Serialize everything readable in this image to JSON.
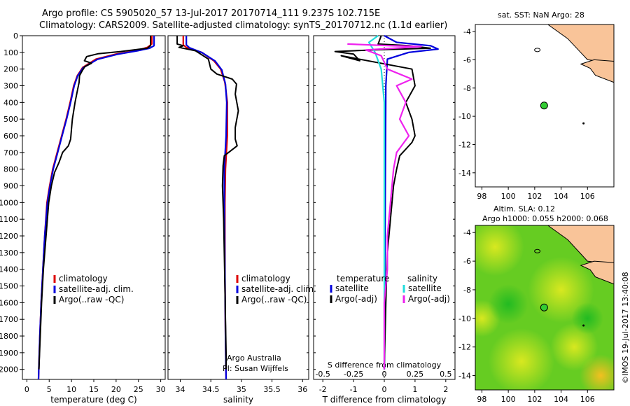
{
  "header": {
    "title1": "Argo profile: CS 5905020_57 13-Jul-2017 20170714_111 9.237S 102.715E",
    "title2": "Climatology: CARS2009. Satellite-adjusted climatology: synTS_20170712.nc (1.1d earlier)"
  },
  "depth_ticks": [
    "0",
    "100",
    "200",
    "300",
    "400",
    "500",
    "600",
    "700",
    "800",
    "900",
    "1000",
    "1100",
    "1200",
    "1300",
    "1400",
    "1500",
    "1600",
    "1700",
    "1800",
    "1900",
    "2000"
  ],
  "colors": {
    "climatology": "#dd0000",
    "satellite": "#0000dd",
    "argo": "#000000",
    "argo_adj": "#ee22ee",
    "sal_sat": "#22dddd",
    "land": "#f9c499",
    "float_marker": "#33cc33"
  },
  "chart_data": [
    {
      "type": "line",
      "panel": "temperature",
      "xlabel": "temperature (deg C)",
      "xlim": [
        -1,
        31
      ],
      "ylim": [
        2060,
        0
      ],
      "xticks": [
        "0",
        "5",
        "10",
        "15",
        "20",
        "25",
        "30"
      ],
      "legend": {
        "placement": "lower-left",
        "entries": [
          "climatology",
          "satellite-adj. clim.",
          "Argo(..raw -QC)"
        ]
      },
      "series": [
        {
          "name": "climatology",
          "color": "#dd0000",
          "points": [
            [
              28,
              0
            ],
            [
              28,
              50
            ],
            [
              27,
              70
            ],
            [
              24.5,
              90
            ],
            [
              20,
              110
            ],
            [
              15.5,
              140
            ],
            [
              12.5,
              190
            ],
            [
              11.3,
              240
            ],
            [
              10.5,
              300
            ],
            [
              9.7,
              400
            ],
            [
              8.8,
              500
            ],
            [
              7.8,
              600
            ],
            [
              6.8,
              700
            ],
            [
              5.8,
              800
            ],
            [
              5.1,
              900
            ],
            [
              4.5,
              1000
            ],
            [
              4,
              1200
            ],
            [
              3.6,
              1400
            ],
            [
              3.2,
              1600
            ],
            [
              2.9,
              1800
            ],
            [
              2.6,
              2060
            ]
          ]
        },
        {
          "name": "satellite-adj. clim.",
          "color": "#0000dd",
          "points": [
            [
              28.5,
              0
            ],
            [
              28.5,
              60
            ],
            [
              27.5,
              75
            ],
            [
              24.8,
              90
            ],
            [
              20.2,
              112
            ],
            [
              15.8,
              142
            ],
            [
              12.6,
              192
            ],
            [
              11.4,
              240
            ],
            [
              10.6,
              300
            ],
            [
              9.8,
              400
            ],
            [
              8.9,
              500
            ],
            [
              7.9,
              600
            ],
            [
              6.9,
              700
            ],
            [
              5.9,
              800
            ],
            [
              5.2,
              900
            ],
            [
              4.6,
              1000
            ],
            [
              4,
              1200
            ],
            [
              3.6,
              1400
            ],
            [
              3.2,
              1600
            ],
            [
              2.9,
              1800
            ],
            [
              2.6,
              2060
            ]
          ]
        },
        {
          "name": "Argo(..raw -QC)",
          "color": "#000000",
          "points": [
            [
              27.7,
              0
            ],
            [
              27.7,
              60
            ],
            [
              27,
              75
            ],
            [
              21,
              95
            ],
            [
              16,
              108
            ],
            [
              13.4,
              125
            ],
            [
              12.9,
              150
            ],
            [
              14.5,
              165
            ],
            [
              13,
              185
            ],
            [
              12.4,
              210
            ],
            [
              11.8,
              240
            ],
            [
              11.7,
              280
            ],
            [
              11.4,
              320
            ],
            [
              10.8,
              400
            ],
            [
              10.5,
              450
            ],
            [
              10.2,
              500
            ],
            [
              10,
              560
            ],
            [
              9.8,
              620
            ],
            [
              9.3,
              660
            ],
            [
              8,
              700
            ],
            [
              7.2,
              760
            ],
            [
              6.2,
              820
            ],
            [
              5.5,
              900
            ],
            [
              4.9,
              1000
            ],
            [
              4.3,
              1200
            ],
            [
              3.7,
              1400
            ],
            [
              3.3,
              1600
            ],
            [
              3,
              1800
            ],
            [
              2.7,
              2000
            ]
          ]
        }
      ]
    },
    {
      "type": "line",
      "panel": "salinity",
      "xlabel": "salinity",
      "xlim": [
        33.8,
        36.1
      ],
      "ylim": [
        2060,
        0
      ],
      "xticks": [
        "34",
        "34.5",
        "35",
        "35.5",
        "36"
      ],
      "legend": {
        "placement": "lower-right",
        "entries": [
          "climatology",
          "satellite-adj. clim.",
          "Argo(..raw -QC)"
        ]
      },
      "annotations": [
        "Argo Australia",
        "PI: Susan Wijffels"
      ],
      "series": [
        {
          "name": "climatology",
          "color": "#dd0000",
          "points": [
            [
              34.05,
              0
            ],
            [
              34.05,
              55
            ],
            [
              34.1,
              70
            ],
            [
              34.35,
              100
            ],
            [
              34.55,
              150
            ],
            [
              34.66,
              200
            ],
            [
              34.73,
              280
            ],
            [
              34.77,
              400
            ],
            [
              34.77,
              600
            ],
            [
              34.74,
              800
            ],
            [
              34.73,
              1000
            ],
            [
              34.73,
              1400
            ],
            [
              34.74,
              1800
            ],
            [
              34.75,
              2060
            ]
          ]
        },
        {
          "name": "satellite-adj. clim.",
          "color": "#0000dd",
          "points": [
            [
              34.1,
              0
            ],
            [
              34.1,
              55
            ],
            [
              34.15,
              72
            ],
            [
              34.36,
              102
            ],
            [
              34.57,
              152
            ],
            [
              34.68,
              205
            ],
            [
              34.74,
              290
            ],
            [
              34.76,
              400
            ],
            [
              34.75,
              600
            ],
            [
              34.72,
              800
            ],
            [
              34.72,
              1000
            ],
            [
              34.73,
              1400
            ],
            [
              34.74,
              1800
            ],
            [
              34.75,
              2060
            ]
          ]
        },
        {
          "name": "Argo(..raw -QC)",
          "color": "#000000",
          "points": [
            [
              33.95,
              0
            ],
            [
              33.95,
              50
            ],
            [
              34.05,
              60
            ],
            [
              33.98,
              70
            ],
            [
              34.25,
              90
            ],
            [
              34.46,
              140
            ],
            [
              34.5,
              200
            ],
            [
              34.6,
              230
            ],
            [
              34.85,
              260
            ],
            [
              34.92,
              290
            ],
            [
              34.9,
              350
            ],
            [
              34.95,
              450
            ],
            [
              34.9,
              550
            ],
            [
              34.9,
              620
            ],
            [
              34.93,
              660
            ],
            [
              34.72,
              720
            ],
            [
              34.7,
              780
            ],
            [
              34.69,
              900
            ],
            [
              34.71,
              1100
            ],
            [
              34.72,
              1300
            ],
            [
              34.73,
              1500
            ],
            [
              34.74,
              1700
            ],
            [
              34.75,
              1900
            ],
            [
              34.75,
              2000
            ]
          ]
        }
      ]
    },
    {
      "type": "line",
      "panel": "difference",
      "xlabel": "T difference from climatology",
      "xlabel_top": "S difference from climatology",
      "xlim": [
        -2.3,
        2.3
      ],
      "ylim": [
        2060,
        0
      ],
      "xticks": [
        "-2",
        "-1",
        "0",
        "1",
        "2"
      ],
      "xticks_top": [
        "-0.5",
        "-0.25",
        "0",
        "0.25",
        "0.5"
      ],
      "legend": {
        "placement": "lower-center",
        "headers": [
          "temperature",
          "salinity"
        ],
        "entries": [
          "satellite",
          "Argo(-adj)",
          "satellite",
          "Argo(-adj)"
        ]
      },
      "series": [
        {
          "name": "temperature satellite",
          "color": "#0000dd",
          "points": [
            [
              0,
              0
            ],
            [
              0.4,
              40
            ],
            [
              1.5,
              60
            ],
            [
              1.75,
              80
            ],
            [
              0.8,
              100
            ],
            [
              0.1,
              140
            ],
            [
              0.05,
              300
            ],
            [
              0,
              2000
            ]
          ]
        },
        {
          "name": "temperature Argo(-adj)",
          "color": "#000000",
          "points": [
            [
              -0.1,
              0
            ],
            [
              -0.2,
              50
            ],
            [
              0.8,
              60
            ],
            [
              1.5,
              75
            ],
            [
              -0.3,
              85
            ],
            [
              -1.6,
              95
            ],
            [
              -1.0,
              110
            ],
            [
              -0.8,
              150
            ],
            [
              -1.4,
              120
            ],
            [
              0.9,
              200
            ],
            [
              1.0,
              300
            ],
            [
              0.7,
              400
            ],
            [
              0.9,
              500
            ],
            [
              1.0,
              600
            ],
            [
              0.9,
              640
            ],
            [
              0.5,
              720
            ],
            [
              0.4,
              800
            ],
            [
              0.3,
              900
            ],
            [
              0.2,
              1100
            ],
            [
              0.1,
              1300
            ],
            [
              0.05,
              1600
            ],
            [
              0,
              2000
            ]
          ]
        },
        {
          "name": "salinity satellite",
          "color": "#22dddd",
          "points": [
            [
              -0.2,
              0
            ],
            [
              -0.5,
              40
            ],
            [
              -0.3,
              100
            ],
            [
              -0.1,
              200
            ],
            [
              0,
              400
            ],
            [
              0,
              2000
            ]
          ]
        },
        {
          "name": "salinity Argo(-adj)",
          "color": "#ee22ee",
          "points": [
            [
              -1.2,
              50
            ],
            [
              0.2,
              60
            ],
            [
              1.2,
              65
            ],
            [
              -0.6,
              85
            ],
            [
              -0.1,
              120
            ],
            [
              0.1,
              200
            ],
            [
              0.9,
              260
            ],
            [
              0.4,
              300
            ],
            [
              0.7,
              400
            ],
            [
              0.5,
              500
            ],
            [
              0.8,
              600
            ],
            [
              0.4,
              700
            ],
            [
              0.3,
              800
            ],
            [
              0.2,
              1000
            ],
            [
              0.1,
              1200
            ],
            [
              0.1,
              1400
            ],
            [
              0,
              1600
            ],
            [
              0,
              2000
            ]
          ]
        }
      ]
    },
    {
      "type": "scatter",
      "panel": "sst-map",
      "title": "sat. SST: NaN Argo: 28",
      "xlim": [
        97.5,
        108
      ],
      "ylim": [
        -15,
        -3.5
      ],
      "xticks": [
        "98",
        "100",
        "102",
        "104",
        "106"
      ],
      "yticks": [
        "-4",
        "-6",
        "-8",
        "-10",
        "-12",
        "-14"
      ],
      "points": [
        {
          "lon": 102.715,
          "lat": -9.237
        }
      ]
    },
    {
      "type": "heatmap",
      "panel": "sla-map",
      "title": "Altim. SLA: 0.12",
      "subtitle": "Argo h1000: 0.055 h2000: 0.068",
      "xlim": [
        97.5,
        108
      ],
      "ylim": [
        -15,
        -3.5
      ],
      "xticks": [
        "98",
        "100",
        "102",
        "104",
        "106"
      ],
      "yticks": [
        "-4",
        "-6",
        "-8",
        "-10",
        "-12",
        "-14"
      ],
      "points": [
        {
          "lon": 102.715,
          "lat": -9.237
        }
      ]
    }
  ],
  "credit": "©IMOS 19-Jul-2017 13:40:08"
}
